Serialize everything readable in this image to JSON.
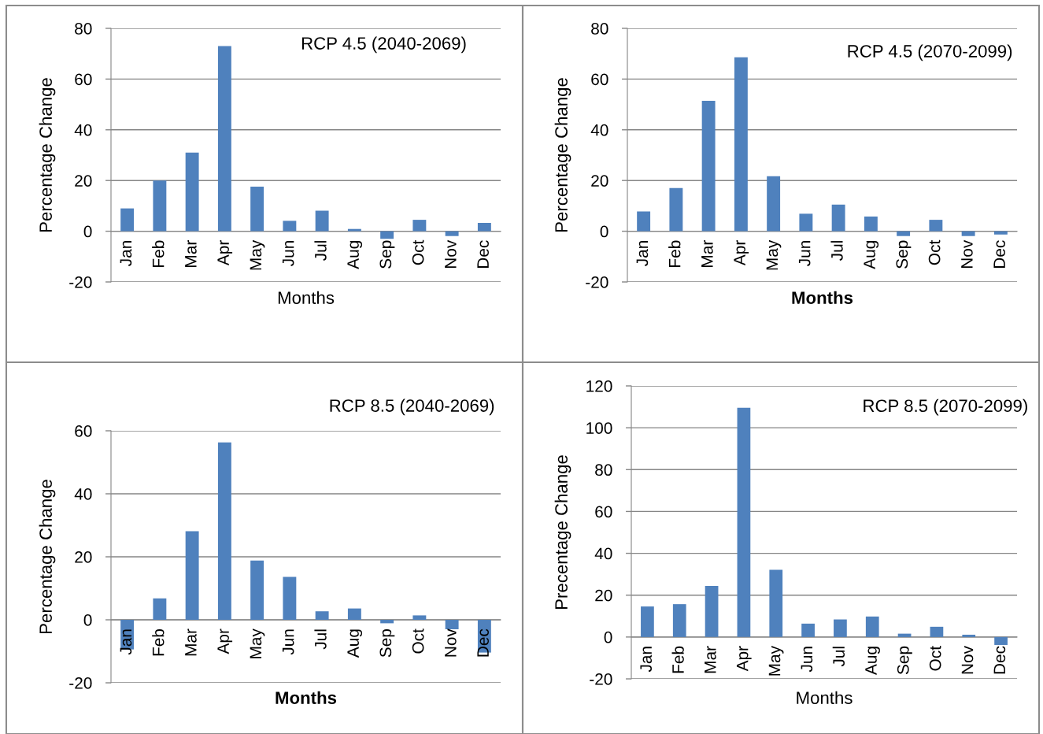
{
  "chart_data": [
    {
      "type": "bar",
      "title": "RCP 4.5 (2040-2069)",
      "xlabel": "Months",
      "ylabel": "Percentage Change",
      "categories": [
        "Jan",
        "Feb",
        "Mar",
        "Apr",
        "May",
        "Jun",
        "Jul",
        "Aug",
        "Sep",
        "Oct",
        "Nov",
        "Dec"
      ],
      "values": [
        9,
        20,
        31,
        73,
        17.6,
        4.1,
        8.1,
        0.9,
        -3,
        4.5,
        -1.9,
        3.3
      ],
      "color": "#4f81bd",
      "ylim": [
        -20,
        80
      ],
      "yticks": [
        -20,
        0,
        20,
        40,
        60,
        80
      ],
      "grid": "y"
    },
    {
      "type": "bar",
      "title": "RCP 4.5 (2070-2099)",
      "xlabel": "Months",
      "ylabel": "Percentage Change",
      "categories": [
        "Jan",
        "Feb",
        "Mar",
        "Apr",
        "May",
        "Jun",
        "Jul",
        "Aug",
        "Sep",
        "Oct",
        "Nov",
        "Dec"
      ],
      "values": [
        7.8,
        17,
        51.4,
        68.6,
        21.7,
        6.9,
        10.5,
        5.8,
        -1.9,
        4.5,
        -1.9,
        -1.3
      ],
      "color": "#4f81bd",
      "ylim": [
        -20,
        80
      ],
      "yticks": [
        -20,
        0,
        20,
        40,
        60,
        80
      ],
      "grid": "y"
    },
    {
      "type": "bar",
      "title": "RCP 8.5 (2040-2069)",
      "xlabel": "Months",
      "ylabel": "Percentage Change",
      "categories": [
        "Jan",
        "Feb",
        "Mar",
        "Apr",
        "May",
        "Jun",
        "Jul",
        "Aug",
        "Sep",
        "Oct",
        "Nov",
        "Dec"
      ],
      "values": [
        -9.4,
        6.8,
        28.1,
        56.3,
        18.8,
        13.6,
        2.7,
        3.6,
        -1.1,
        1.4,
        -3,
        -10.4
      ],
      "color": "#4f81bd",
      "ylim": [
        -20,
        60
      ],
      "yticks": [
        -20,
        0,
        20,
        40,
        60
      ],
      "grid": "y"
    },
    {
      "type": "bar",
      "title": "RCP 8.5 (2070-2099)",
      "xlabel": "Months",
      "ylabel": "Precentage Change",
      "categories": [
        "Jan",
        "Feb",
        "Mar",
        "Apr",
        "May",
        "Jun",
        "Jul",
        "Aug",
        "Sep",
        "Oct",
        "Nov",
        "Dec"
      ],
      "values": [
        14.6,
        15.7,
        24.4,
        109.6,
        32.1,
        6.4,
        8.4,
        9.8,
        1.6,
        4.9,
        1.1,
        -3.8
      ],
      "color": "#4f81bd",
      "ylim": [
        -20,
        120
      ],
      "yticks": [
        -20,
        0,
        20,
        40,
        60,
        80,
        100,
        120
      ],
      "grid": "y"
    }
  ]
}
